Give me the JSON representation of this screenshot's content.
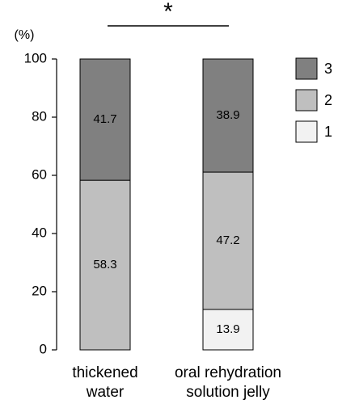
{
  "chart_data": {
    "type": "stacked_bar",
    "y_label": "(%)",
    "annotation": "*",
    "categories": [
      [
        "thickened",
        "water"
      ],
      [
        "oral rehydration",
        "solution jelly"
      ]
    ],
    "series": [
      {
        "name": "1",
        "color": "#f2f2f2",
        "values": [
          null,
          13.9
        ]
      },
      {
        "name": "2",
        "color": "#bfbfbf",
        "values": [
          58.3,
          47.2
        ]
      },
      {
        "name": "3",
        "color": "#808080",
        "values": [
          41.7,
          38.9
        ]
      }
    ],
    "ylim": [
      0,
      100
    ],
    "yticks": [
      0,
      20,
      40,
      60,
      80,
      100
    ]
  }
}
